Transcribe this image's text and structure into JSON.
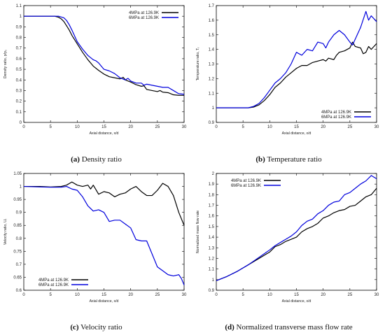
{
  "chart_data": [
    {
      "id": "a",
      "type": "line",
      "caption_letter": "(a)",
      "caption_text": " Density ratio",
      "xlabel": "Axial distance, x/d",
      "ylabel": "Density ratio, ρ/ρ₀",
      "xlim": [
        0,
        30
      ],
      "ylim": [
        0,
        1.1
      ],
      "xticks": [
        0,
        5,
        10,
        15,
        20,
        25,
        30
      ],
      "yticks": [
        0,
        0.1,
        0.2,
        0.3,
        0.4,
        0.5,
        0.6,
        0.7,
        0.8,
        0.9,
        1,
        1.1
      ],
      "ytick_labels": [
        "0",
        "0.1",
        "0.2",
        "0.3",
        "0.4",
        "0.5",
        "0.6",
        "0.7",
        "0.8",
        "0.9",
        "1",
        "1.1"
      ],
      "grid": false,
      "legend_position": "top-right",
      "series": [
        {
          "name": "4MPa at 126.9K",
          "color": "#000000",
          "points": [
            [
              0,
              1
            ],
            [
              5.8,
              1
            ],
            [
              6.5,
              0.99
            ],
            [
              7,
              0.975
            ],
            [
              7.5,
              0.95
            ],
            [
              8,
              0.91
            ],
            [
              8.5,
              0.87
            ],
            [
              9,
              0.82
            ],
            [
              10,
              0.74
            ],
            [
              11,
              0.66
            ],
            [
              12,
              0.59
            ],
            [
              13,
              0.53
            ],
            [
              14,
              0.49
            ],
            [
              15,
              0.455
            ],
            [
              16,
              0.43
            ],
            [
              17,
              0.42
            ],
            [
              18,
              0.41
            ],
            [
              18.6,
              0.425
            ],
            [
              19,
              0.4
            ],
            [
              20,
              0.38
            ],
            [
              21,
              0.355
            ],
            [
              22,
              0.34
            ],
            [
              22.5,
              0.345
            ],
            [
              23,
              0.31
            ],
            [
              24,
              0.3
            ],
            [
              25,
              0.29
            ],
            [
              25.5,
              0.3
            ],
            [
              26,
              0.285
            ],
            [
              27,
              0.28
            ],
            [
              28,
              0.26
            ],
            [
              29,
              0.255
            ],
            [
              30,
              0.255
            ]
          ]
        },
        {
          "name": "6MPa at 126.9K",
          "color": "#0000dd",
          "points": [
            [
              0,
              1
            ],
            [
              6.5,
              1
            ],
            [
              7.5,
              0.985
            ],
            [
              8,
              0.96
            ],
            [
              8.5,
              0.92
            ],
            [
              9,
              0.87
            ],
            [
              10,
              0.76
            ],
            [
              11,
              0.69
            ],
            [
              12,
              0.63
            ],
            [
              13,
              0.59
            ],
            [
              13.5,
              0.58
            ],
            [
              14,
              0.56
            ],
            [
              15,
              0.5
            ],
            [
              16,
              0.485
            ],
            [
              17,
              0.46
            ],
            [
              17.5,
              0.44
            ],
            [
              18,
              0.42
            ],
            [
              19,
              0.4
            ],
            [
              19.5,
              0.415
            ],
            [
              20,
              0.39
            ],
            [
              21,
              0.37
            ],
            [
              22,
              0.37
            ],
            [
              22.5,
              0.35
            ],
            [
              23,
              0.36
            ],
            [
              24,
              0.35
            ],
            [
              25,
              0.34
            ],
            [
              26,
              0.33
            ],
            [
              27,
              0.33
            ],
            [
              28,
              0.3
            ],
            [
              29,
              0.27
            ],
            [
              30,
              0.265
            ]
          ]
        }
      ]
    },
    {
      "id": "b",
      "type": "line",
      "caption_letter": "(b)",
      "caption_text": " Temperature ratio",
      "xlabel": "Axial distance, x/d",
      "ylabel": "Temperature ratio, Tᵣ",
      "xlim": [
        0,
        30
      ],
      "ylim": [
        0.9,
        1.7
      ],
      "xticks": [
        0,
        5,
        10,
        15,
        20,
        25,
        30
      ],
      "yticks": [
        0.9,
        1,
        1.1,
        1.2,
        1.3,
        1.4,
        1.5,
        1.6,
        1.7
      ],
      "ytick_labels": [
        "0.9",
        "1",
        "1.1",
        "1.2",
        "1.3",
        "1.4",
        "1.5",
        "1.6",
        "1.7"
      ],
      "grid": false,
      "legend_position": "bottom-right",
      "series": [
        {
          "name": "4MPa at 126.9K",
          "color": "#000000",
          "points": [
            [
              0,
              1
            ],
            [
              6,
              1
            ],
            [
              7,
              1.005
            ],
            [
              8,
              1.02
            ],
            [
              9,
              1.05
            ],
            [
              10,
              1.09
            ],
            [
              11,
              1.14
            ],
            [
              12,
              1.17
            ],
            [
              13,
              1.21
            ],
            [
              14,
              1.24
            ],
            [
              15,
              1.27
            ],
            [
              16,
              1.29
            ],
            [
              17,
              1.29
            ],
            [
              18,
              1.31
            ],
            [
              19,
              1.32
            ],
            [
              20,
              1.33
            ],
            [
              20.5,
              1.32
            ],
            [
              21,
              1.34
            ],
            [
              22,
              1.33
            ],
            [
              22.5,
              1.36
            ],
            [
              23,
              1.38
            ],
            [
              24,
              1.39
            ],
            [
              25,
              1.41
            ],
            [
              25.5,
              1.45
            ],
            [
              26,
              1.42
            ],
            [
              27,
              1.41
            ],
            [
              27.5,
              1.37
            ],
            [
              28,
              1.38
            ],
            [
              28.5,
              1.42
            ],
            [
              29,
              1.4
            ],
            [
              30,
              1.44
            ]
          ]
        },
        {
          "name": "6MPa at 126.9K",
          "color": "#0000dd",
          "points": [
            [
              0,
              1
            ],
            [
              6,
              1
            ],
            [
              7,
              1.01
            ],
            [
              8,
              1.03
            ],
            [
              9,
              1.07
            ],
            [
              10,
              1.12
            ],
            [
              11,
              1.17
            ],
            [
              12,
              1.2
            ],
            [
              13,
              1.24
            ],
            [
              14,
              1.3
            ],
            [
              15,
              1.38
            ],
            [
              16,
              1.36
            ],
            [
              17,
              1.4
            ],
            [
              18,
              1.39
            ],
            [
              19,
              1.45
            ],
            [
              20,
              1.44
            ],
            [
              20.5,
              1.41
            ],
            [
              21,
              1.45
            ],
            [
              22,
              1.5
            ],
            [
              23,
              1.53
            ],
            [
              24,
              1.5
            ],
            [
              25,
              1.45
            ],
            [
              25.5,
              1.43
            ],
            [
              26,
              1.47
            ],
            [
              27,
              1.55
            ],
            [
              28,
              1.66
            ],
            [
              28.5,
              1.6
            ],
            [
              29,
              1.63
            ],
            [
              30,
              1.59
            ]
          ]
        }
      ]
    },
    {
      "id": "c",
      "type": "line",
      "caption_letter": "(c)",
      "caption_text": " Velocity ratio",
      "xlabel": "Axial distance, x/d",
      "ylabel": "Velocity ratio, Uᵣ",
      "xlim": [
        0,
        30
      ],
      "ylim": [
        0.6,
        1.05
      ],
      "xticks": [
        0,
        5,
        10,
        15,
        20,
        25,
        30
      ],
      "yticks": [
        0.6,
        0.65,
        0.7,
        0.75,
        0.8,
        0.85,
        0.9,
        0.95,
        1,
        1.05
      ],
      "ytick_labels": [
        "0.6",
        "0.65",
        "0.7",
        "0.75",
        "0.8",
        "0.85",
        "0.9",
        "0.95",
        "1",
        "1.05"
      ],
      "grid": false,
      "legend_position": "bottom-left",
      "series": [
        {
          "name": "4MPa at 126.9K",
          "color": "#000000",
          "points": [
            [
              0,
              1
            ],
            [
              3,
              1
            ],
            [
              5,
              0.998
            ],
            [
              7,
              1.0
            ],
            [
              8,
              1.005
            ],
            [
              9,
              1.017
            ],
            [
              10,
              1.005
            ],
            [
              11,
              1.0
            ],
            [
              12,
              1.005
            ],
            [
              12.5,
              0.99
            ],
            [
              13,
              1.005
            ],
            [
              14,
              0.97
            ],
            [
              15,
              0.98
            ],
            [
              16,
              0.975
            ],
            [
              17,
              0.96
            ],
            [
              18,
              0.97
            ],
            [
              19,
              0.975
            ],
            [
              20,
              0.99
            ],
            [
              21,
              1.0
            ],
            [
              22,
              0.98
            ],
            [
              23,
              0.965
            ],
            [
              24,
              0.965
            ],
            [
              25,
              0.985
            ],
            [
              26,
              1.012
            ],
            [
              27,
              1.0
            ],
            [
              28,
              0.965
            ],
            [
              29,
              0.9
            ],
            [
              30,
              0.85
            ]
          ]
        },
        {
          "name": "6MPa at 126.9K",
          "color": "#0000dd",
          "points": [
            [
              0,
              1
            ],
            [
              3,
              0.998
            ],
            [
              5,
              0.997
            ],
            [
              7,
              0.997
            ],
            [
              8,
              1.0
            ],
            [
              9,
              0.99
            ],
            [
              10,
              0.985
            ],
            [
              11,
              0.96
            ],
            [
              12,
              0.925
            ],
            [
              13,
              0.905
            ],
            [
              14,
              0.91
            ],
            [
              15,
              0.9
            ],
            [
              16,
              0.865
            ],
            [
              17,
              0.87
            ],
            [
              18,
              0.87
            ],
            [
              19,
              0.855
            ],
            [
              20,
              0.84
            ],
            [
              21,
              0.795
            ],
            [
              22,
              0.79
            ],
            [
              23,
              0.79
            ],
            [
              24,
              0.74
            ],
            [
              25,
              0.69
            ],
            [
              26,
              0.675
            ],
            [
              27,
              0.66
            ],
            [
              28,
              0.655
            ],
            [
              29,
              0.66
            ],
            [
              29.5,
              0.645
            ],
            [
              30,
              0.62
            ]
          ]
        }
      ]
    },
    {
      "id": "d",
      "type": "line",
      "caption_letter": "(d)",
      "caption_text": " Normalized transverse mass flow rate",
      "xlabel": "Axial distance, x/d",
      "ylabel": "Normalized mass flow rate",
      "xlim": [
        0,
        30
      ],
      "ylim": [
        0.9,
        2
      ],
      "xticks": [
        0,
        5,
        10,
        15,
        20,
        25,
        30
      ],
      "yticks": [
        0.9,
        1,
        1.1,
        1.2,
        1.3,
        1.4,
        1.5,
        1.6,
        1.7,
        1.8,
        1.9,
        2
      ],
      "ytick_labels": [
        "0.9",
        "1",
        "1.1",
        "1.2",
        "1.3",
        "1.4",
        "1.5",
        "1.6",
        "1.7",
        "1.8",
        "1.9",
        "2"
      ],
      "grid": false,
      "legend_position": "top-left",
      "series": [
        {
          "name": "4MPa at 126.9K",
          "color": "#000000",
          "points": [
            [
              0,
              0.99
            ],
            [
              2,
              1.03
            ],
            [
              4,
              1.08
            ],
            [
              6,
              1.14
            ],
            [
              8,
              1.2
            ],
            [
              10,
              1.26
            ],
            [
              11,
              1.31
            ],
            [
              12,
              1.33
            ],
            [
              13,
              1.36
            ],
            [
              14,
              1.38
            ],
            [
              15,
              1.4
            ],
            [
              16,
              1.45
            ],
            [
              17,
              1.48
            ],
            [
              18,
              1.5
            ],
            [
              19,
              1.53
            ],
            [
              20,
              1.58
            ],
            [
              21,
              1.6
            ],
            [
              22,
              1.63
            ],
            [
              23,
              1.65
            ],
            [
              24,
              1.66
            ],
            [
              25,
              1.69
            ],
            [
              26,
              1.7
            ],
            [
              27,
              1.74
            ],
            [
              28,
              1.78
            ],
            [
              29,
              1.8
            ],
            [
              30,
              1.86
            ]
          ]
        },
        {
          "name": "6MPa at 126.9K",
          "color": "#0000dd",
          "points": [
            [
              0,
              0.99
            ],
            [
              2,
              1.03
            ],
            [
              4,
              1.08
            ],
            [
              6,
              1.14
            ],
            [
              8,
              1.21
            ],
            [
              10,
              1.28
            ],
            [
              11,
              1.32
            ],
            [
              12,
              1.35
            ],
            [
              13,
              1.38
            ],
            [
              14,
              1.41
            ],
            [
              15,
              1.45
            ],
            [
              16,
              1.51
            ],
            [
              17,
              1.55
            ],
            [
              18,
              1.57
            ],
            [
              19,
              1.62
            ],
            [
              20,
              1.65
            ],
            [
              21,
              1.7
            ],
            [
              22,
              1.73
            ],
            [
              23,
              1.74
            ],
            [
              24,
              1.8
            ],
            [
              25,
              1.82
            ],
            [
              26,
              1.86
            ],
            [
              27,
              1.9
            ],
            [
              28,
              1.93
            ],
            [
              29,
              1.98
            ],
            [
              30,
              1.95
            ]
          ]
        }
      ]
    }
  ]
}
